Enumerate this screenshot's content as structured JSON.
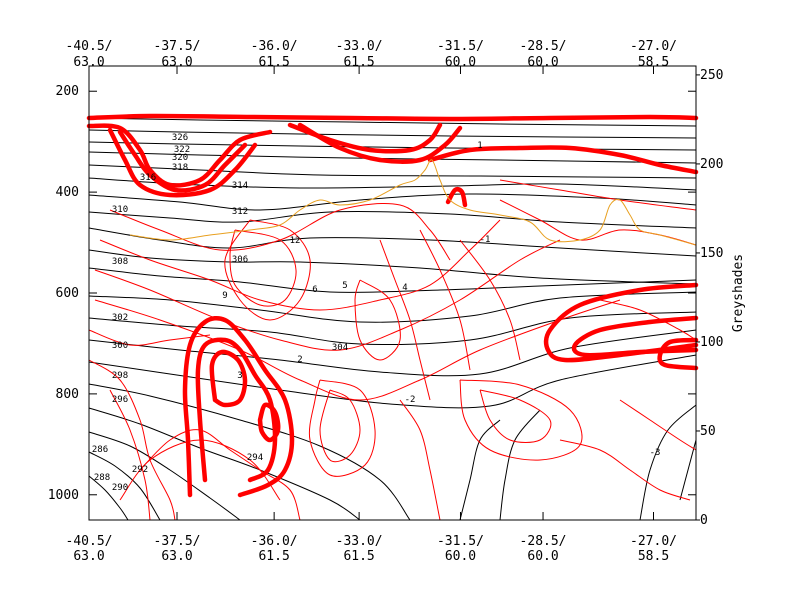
{
  "chart_data": {
    "type": "contour",
    "title": "",
    "x_axis": {
      "position_labels": [
        {
          "lon": "-40.5/",
          "lat": "63.0"
        },
        {
          "lon": "-37.5/",
          "lat": "63.0"
        },
        {
          "lon": "-36.0/",
          "lat": "61.5"
        },
        {
          "lon": "-33.0/",
          "lat": "61.5"
        },
        {
          "lon": "-31.5/",
          "lat": "60.0"
        },
        {
          "lon": "-28.5/",
          "lat": "60.0"
        },
        {
          "lon": "-27.0/",
          "lat": "58.5"
        }
      ],
      "tick_fractions": [
        0.0,
        0.145,
        0.305,
        0.445,
        0.612,
        0.748,
        0.93
      ]
    },
    "y_axis": {
      "label": "",
      "scale": "linear",
      "reversed": true,
      "range": [
        1050,
        150
      ],
      "ticks": [
        200,
        400,
        600,
        800,
        1000
      ]
    },
    "y2_axis": {
      "label": "Greyshades",
      "range": [
        0,
        255
      ],
      "ticks": [
        0,
        50,
        100,
        150,
        200,
        250
      ]
    },
    "black_contour_labels": [
      "326",
      "322",
      "320",
      "318",
      "316",
      "314",
      "312",
      "310",
      "308",
      "306",
      "304",
      "302",
      "300",
      "298",
      "296",
      "294",
      "292",
      "290",
      "288",
      "286"
    ],
    "red_contour_labels": [
      "1",
      "2",
      "3",
      "4",
      "5",
      "6",
      "9",
      "12",
      "-1",
      "-2",
      "-3"
    ],
    "series": [
      {
        "kind": "isentropes",
        "color": "#000000"
      },
      {
        "kind": "wind-contours",
        "color": "#ff0000"
      },
      {
        "kind": "highlight-contour",
        "color": "#e8a020"
      }
    ],
    "grid": false
  },
  "colors": {
    "isentrope": "#000000",
    "contour": "#ff0000",
    "highlight": "#e8a020",
    "frame": "#000000"
  }
}
